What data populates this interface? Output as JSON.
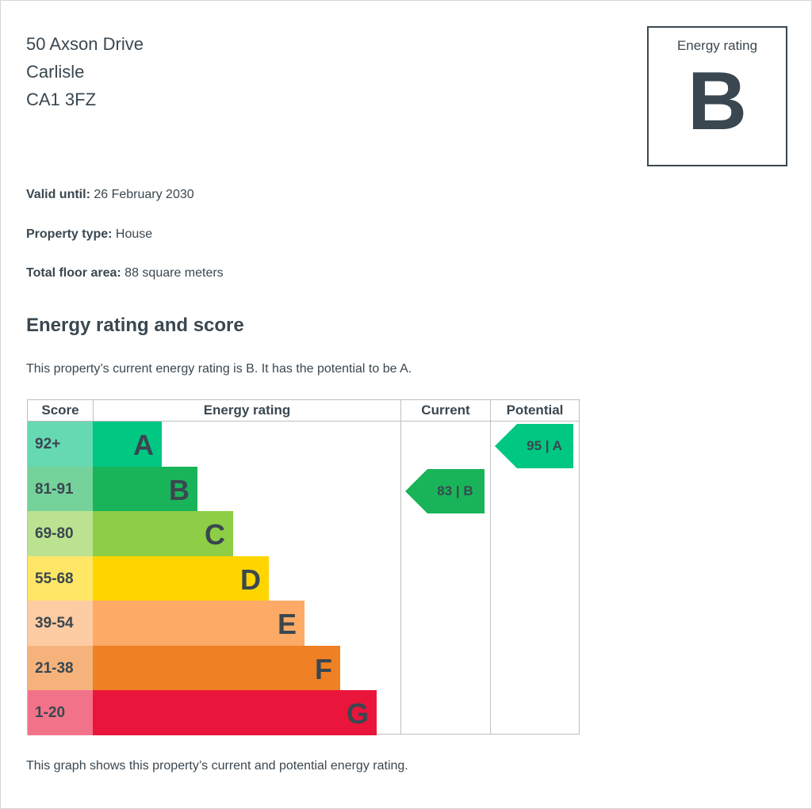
{
  "address": {
    "line1": "50 Axson Drive",
    "line2": "Carlisle",
    "line3": "CA1 3FZ"
  },
  "rating_box": {
    "label": "Energy rating",
    "letter": "B"
  },
  "details": {
    "valid_until_label": "Valid until:",
    "valid_until": "26 February 2030",
    "property_type_label": "Property type:",
    "property_type": "House",
    "floor_area_label": "Total floor area:",
    "floor_area": "88 square meters"
  },
  "section_title": "Energy rating and score",
  "intro_text": "This property’s current energy rating is B. It has the potential to be A.",
  "chart_data": {
    "type": "table",
    "headers": [
      "Score",
      "Energy rating",
      "Current",
      "Potential"
    ],
    "bands": [
      {
        "range": "92+",
        "letter": "A",
        "color": "#00c781",
        "score_color": "#66d9b3"
      },
      {
        "range": "81-91",
        "letter": "B",
        "color": "#19b459",
        "score_color": "#75d29b"
      },
      {
        "range": "69-80",
        "letter": "C",
        "color": "#8dce46",
        "score_color": "#bbe290"
      },
      {
        "range": "55-68",
        "letter": "D",
        "color": "#ffd500",
        "score_color": "#ffe666"
      },
      {
        "range": "39-54",
        "letter": "E",
        "color": "#fcaa65",
        "score_color": "#fdcca3"
      },
      {
        "range": "21-38",
        "letter": "F",
        "color": "#ef8023",
        "score_color": "#f5b37b"
      },
      {
        "range": "1-20",
        "letter": "G",
        "color": "#e9153b",
        "score_color": "#f27389"
      }
    ],
    "current": {
      "score": 83,
      "letter": "B",
      "text": "83 | B",
      "color": "#19b459"
    },
    "potential": {
      "score": 95,
      "letter": "A",
      "text": "95 | A",
      "color": "#00c781"
    }
  },
  "footer_text": "This graph shows this property’s current and potential energy rating."
}
